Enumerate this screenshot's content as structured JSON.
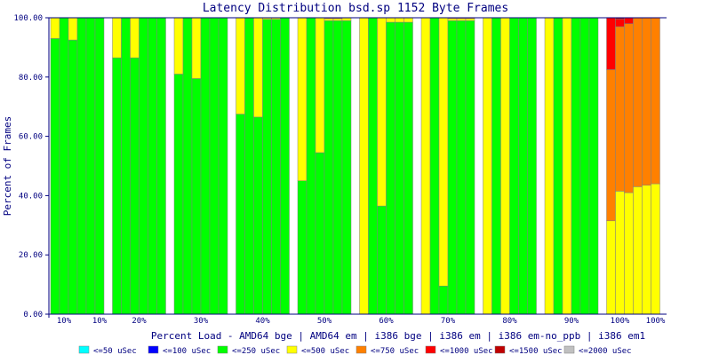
{
  "chart_data": {
    "type": "bar",
    "stacked": true,
    "title": "Latency Distribution bsd.sp 1152 Byte Frames",
    "xlabel": "Percent Load - AMD64 bge | AMD64 em | i386 bge | i386 em | i386 em-no_ppb | i386 em1",
    "ylabel": "Percent of Frames",
    "ylim": [
      0,
      100
    ],
    "yticks": [
      "0.00",
      "20.00",
      "40.00",
      "60.00",
      "80.00",
      "100.00"
    ],
    "grid": false,
    "legend_position": "bottom",
    "groups": [
      {
        "label": "10%",
        "tick_labels": [
          "10%",
          "10%"
        ],
        "bars": [
          {
            "<=250 uSec": 93,
            "<=500 uSec": 7
          },
          {
            "<=250 uSec": 100
          },
          {
            "<=250 uSec": 92.5,
            "<=500 uSec": 7.5
          },
          {
            "<=250 uSec": 100
          },
          {
            "<=250 uSec": 100
          },
          {
            "<=250 uSec": 100
          }
        ]
      },
      {
        "label": "20%",
        "tick_labels": [
          "20%"
        ],
        "bars": [
          {
            "<=250 uSec": 86.5,
            "<=500 uSec": 13.5
          },
          {
            "<=250 uSec": 100
          },
          {
            "<=250 uSec": 86.5,
            "<=500 uSec": 13.5
          },
          {
            "<=250 uSec": 100
          },
          {
            "<=250 uSec": 100
          },
          {
            "<=250 uSec": 100
          }
        ]
      },
      {
        "label": "30%",
        "tick_labels": [
          "30%"
        ],
        "bars": [
          {
            "<=250 uSec": 81,
            "<=500 uSec": 19
          },
          {
            "<=250 uSec": 100
          },
          {
            "<=250 uSec": 79.5,
            "<=500 uSec": 20.5
          },
          {
            "<=250 uSec": 100
          },
          {
            "<=250 uSec": 100
          },
          {
            "<=250 uSec": 100
          }
        ]
      },
      {
        "label": "40%",
        "tick_labels": [
          "40%"
        ],
        "bars": [
          {
            "<=250 uSec": 67.5,
            "<=500 uSec": 32.5
          },
          {
            "<=250 uSec": 100
          },
          {
            "<=250 uSec": 66.5,
            "<=500 uSec": 33.5
          },
          {
            "<=250 uSec": 99.5,
            "<=500 uSec": 0.5
          },
          {
            "<=250 uSec": 99.5,
            "<=500 uSec": 0.5
          },
          {
            "<=250 uSec": 100
          }
        ]
      },
      {
        "label": "50%",
        "tick_labels": [
          "50%"
        ],
        "bars": [
          {
            "<=250 uSec": 45,
            "<=500 uSec": 55
          },
          {
            "<=250 uSec": 100
          },
          {
            "<=250 uSec": 54.5,
            "<=500 uSec": 45.5
          },
          {
            "<=250 uSec": 99,
            "<=500 uSec": 0.7,
            "<=750 uSec": 0.3
          },
          {
            "<=250 uSec": 99,
            "<=500 uSec": 0.7,
            "<=750 uSec": 0.3
          },
          {
            "<=250 uSec": 99,
            "<=500 uSec": 1
          }
        ]
      },
      {
        "label": "60%",
        "tick_labels": [
          "60%"
        ],
        "bars": [
          {
            "<=500 uSec": 100
          },
          {
            "<=250 uSec": 100
          },
          {
            "<=250 uSec": 36.5,
            "<=500 uSec": 63.5
          },
          {
            "<=250 uSec": 98.5,
            "<=500 uSec": 1.5
          },
          {
            "<=250 uSec": 98.5,
            "<=500 uSec": 1.5
          },
          {
            "<=250 uSec": 98.5,
            "<=500 uSec": 1.5
          }
        ]
      },
      {
        "label": "70%",
        "tick_labels": [
          "70%"
        ],
        "bars": [
          {
            "<=500 uSec": 100
          },
          {
            "<=250 uSec": 100
          },
          {
            "<=250 uSec": 9.5,
            "<=500 uSec": 90.5
          },
          {
            "<=250 uSec": 99,
            "<=500 uSec": 0.7,
            "<=750 uSec": 0.3
          },
          {
            "<=250 uSec": 99,
            "<=500 uSec": 0.7,
            "<=750 uSec": 0.3
          },
          {
            "<=250 uSec": 99,
            "<=500 uSec": 0.7,
            "<=750 uSec": 0.3
          }
        ]
      },
      {
        "label": "80%",
        "tick_labels": [
          "80%"
        ],
        "bars": [
          {
            "<=500 uSec": 100
          },
          {
            "<=250 uSec": 100
          },
          {
            "<=500 uSec": 100
          },
          {
            "<=250 uSec": 100
          },
          {
            "<=250 uSec": 100
          },
          {
            "<=250 uSec": 100
          }
        ]
      },
      {
        "label": "90%",
        "tick_labels": [
          "90%"
        ],
        "bars": [
          {
            "<=500 uSec": 100
          },
          {
            "<=250 uSec": 100
          },
          {
            "<=500 uSec": 100
          },
          {
            "<=250 uSec": 100
          },
          {
            "<=250 uSec": 100
          },
          {
            "<=250 uSec": 100
          }
        ]
      },
      {
        "label": "100%",
        "tick_labels": [
          "100%",
          "100%"
        ],
        "bars": [
          {
            "<=500 uSec": 31.5,
            "<=750 uSec": 51,
            "<=1000 uSec": 17.5
          },
          {
            "<=500 uSec": 41.5,
            "<=750 uSec": 55.5,
            "<=1000 uSec": 2.5,
            "<=1500 uSec": 0.5
          },
          {
            "<=500 uSec": 41,
            "<=750 uSec": 57,
            "<=1000 uSec": 2
          },
          {
            "<=500 uSec": 43,
            "<=750 uSec": 57
          },
          {
            "<=500 uSec": 43.5,
            "<=750 uSec": 56.5
          },
          {
            "<=500 uSec": 44,
            "<=750 uSec": 56
          }
        ]
      }
    ],
    "legend": [
      {
        "label": "<=50 uSec",
        "color": "#00ffff"
      },
      {
        "label": "<=100 uSec",
        "color": "#0000ff"
      },
      {
        "label": "<=250 uSec",
        "color": "#00ff00"
      },
      {
        "label": "<=500 uSec",
        "color": "#ffff00"
      },
      {
        "label": "<=750 uSec",
        "color": "#ff8000"
      },
      {
        "label": "<=1000 uSec",
        "color": "#ff0000"
      },
      {
        "label": "<=1500 uSec",
        "color": "#c00000"
      },
      {
        "label": "<=2000 uSec",
        "color": "#c0c0c0"
      }
    ],
    "colors": {
      "axis": "#000080",
      "bar_outline": "#808080",
      "background": "#ffffff"
    }
  }
}
